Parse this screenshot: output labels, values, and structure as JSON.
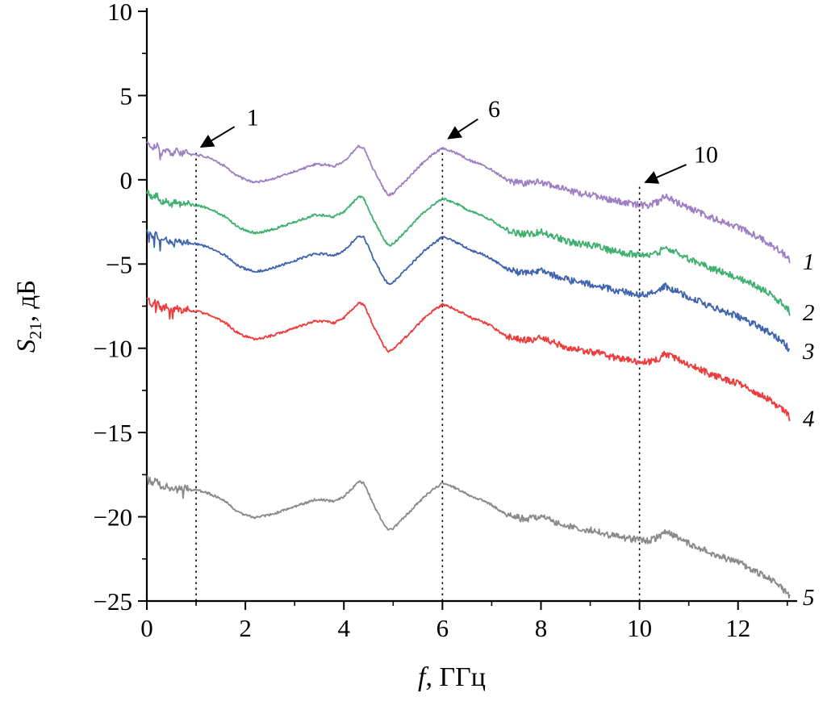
{
  "figure": {
    "background": "#ffffff",
    "ylabel": {
      "main": "S",
      "sub": "21",
      "rest": ", дБ"
    },
    "xlabel": {
      "italic": "f",
      "rest": ", ГГц"
    }
  },
  "chart_data": {
    "type": "line",
    "title": "",
    "xlabel": "f, ГГц",
    "ylabel": "S21, дБ",
    "xlim": [
      0,
      13.2
    ],
    "ylim": [
      -25,
      10
    ],
    "xticks": [
      0,
      2,
      4,
      6,
      8,
      10,
      12
    ],
    "yticks": [
      10,
      5,
      0,
      -5,
      -10,
      -15,
      -20,
      -25
    ],
    "x_minor_step": 1,
    "y_minor_step": 2.5,
    "grid": false,
    "axis_color": "#000000",
    "legend_position": "right-edge-labels",
    "x": [
      0,
      0.1,
      0.2,
      0.3,
      0.4,
      0.5,
      0.6,
      0.7,
      0.8,
      0.9,
      1.0,
      1.2,
      1.4,
      1.6,
      1.8,
      2.0,
      2.2,
      2.4,
      2.6,
      2.8,
      3.0,
      3.2,
      3.4,
      3.6,
      3.8,
      4.0,
      4.1,
      4.2,
      4.3,
      4.4,
      4.5,
      4.6,
      4.7,
      4.8,
      4.9,
      5.0,
      5.1,
      5.2,
      5.4,
      5.6,
      5.8,
      6.0,
      6.2,
      6.4,
      6.6,
      6.8,
      7.0,
      7.2,
      7.4,
      7.6,
      7.8,
      8.0,
      8.2,
      8.4,
      8.6,
      8.8,
      9.0,
      9.2,
      9.4,
      9.6,
      9.8,
      10.0,
      10.2,
      10.4,
      10.5,
      10.6,
      10.8,
      11.0,
      11.2,
      11.4,
      11.6,
      11.8,
      12.0,
      12.2,
      12.4,
      12.6,
      12.8,
      13.0,
      13.05
    ],
    "base_y": [
      2.3,
      1.9,
      2.1,
      1.6,
      1.8,
      1.5,
      1.75,
      1.5,
      1.65,
      1.5,
      1.5,
      1.35,
      1.1,
      0.8,
      0.3,
      0.0,
      -0.15,
      -0.05,
      0.1,
      0.3,
      0.5,
      0.7,
      0.9,
      0.9,
      0.8,
      1.1,
      1.4,
      1.7,
      2.0,
      1.9,
      1.3,
      0.6,
      0.1,
      -0.5,
      -0.9,
      -0.8,
      -0.5,
      -0.2,
      0.4,
      1.0,
      1.5,
      1.9,
      1.7,
      1.4,
      1.1,
      0.9,
      0.6,
      0.2,
      -0.1,
      -0.2,
      -0.2,
      -0.1,
      -0.3,
      -0.5,
      -0.7,
      -0.8,
      -0.9,
      -1.0,
      -1.2,
      -1.3,
      -1.4,
      -1.5,
      -1.5,
      -1.3,
      -1.0,
      -1.1,
      -1.4,
      -1.7,
      -1.9,
      -2.2,
      -2.4,
      -2.6,
      -2.8,
      -3.1,
      -3.4,
      -3.7,
      -4.1,
      -4.6,
      -4.9
    ],
    "series": [
      {
        "name": "1",
        "color": "#9d7fc3",
        "offset": 0
      },
      {
        "name": "2",
        "color": "#3eb06f",
        "offset": -3.0
      },
      {
        "name": "3",
        "color": "#3f63ae",
        "offset": -5.3
      },
      {
        "name": "4",
        "color": "#ee3b3b",
        "offset": -9.3
      },
      {
        "name": "5",
        "color": "#8a8a8a",
        "offset": -19.9
      }
    ],
    "noise": {
      "seed": 101,
      "base": 0.07,
      "head_amp": 0.18,
      "head_until": 0.85,
      "tail_amp": 0.2,
      "tail_from": 7.3,
      "spike_chance": 0.035
    },
    "annotations": [
      {
        "label": "1",
        "x": 1,
        "line_top": 1.6,
        "label_x": 2.15,
        "label_y": 3.7,
        "tail_x": 1.78,
        "tail_y": 3.15,
        "tip_x": 1.1,
        "tip_y": 1.95
      },
      {
        "label": "6",
        "x": 6,
        "line_top": 2.05,
        "label_x": 7.05,
        "label_y": 4.2,
        "tail_x": 6.72,
        "tail_y": 3.6,
        "tip_x": 6.12,
        "tip_y": 2.45
      },
      {
        "label": "10",
        "x": 10,
        "line_top": -0.4,
        "label_x": 11.35,
        "label_y": 1.5,
        "tail_x": 10.95,
        "tail_y": 0.9,
        "tip_x": 10.12,
        "tip_y": -0.15
      }
    ]
  }
}
